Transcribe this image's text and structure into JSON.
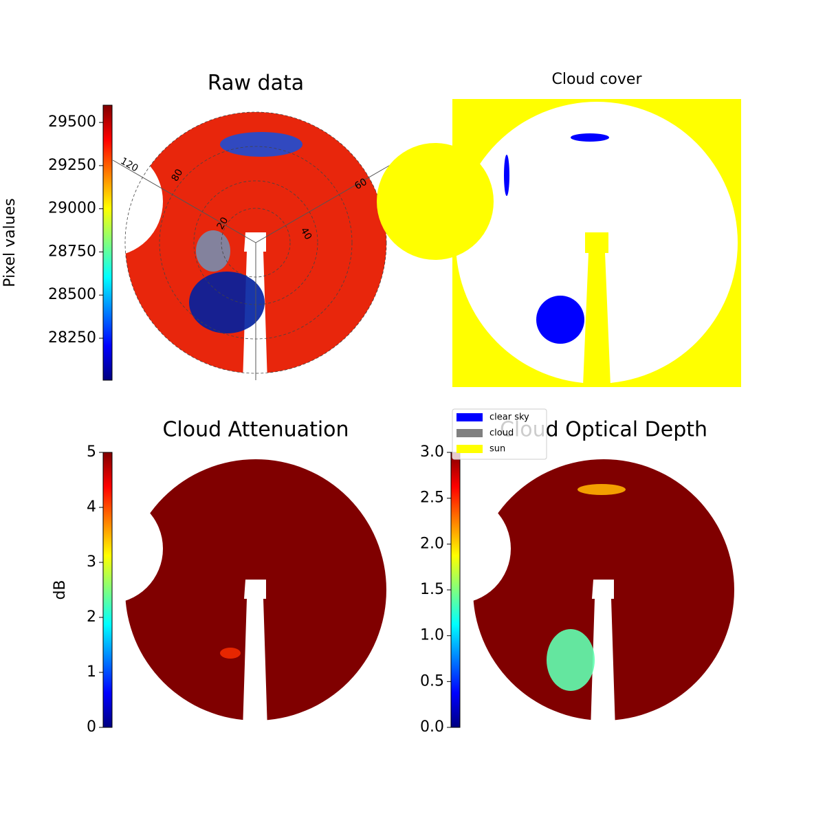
{
  "chart_data": [
    {
      "type": "heatmap",
      "title": "Raw data",
      "ylabel": "Pixel values",
      "cmap": "jet",
      "fill": "#e8260c",
      "ylim": [
        28007,
        29600
      ],
      "yticks": [
        28250,
        28500,
        28750,
        29000,
        29250,
        29500
      ],
      "polar_labels": [
        "120",
        "80",
        "20",
        "40",
        "60"
      ]
    },
    {
      "type": "categorical",
      "title": "Cloud cover",
      "background": "#ffff00",
      "series": [
        {
          "name": "clear sky",
          "color": "#0000ff"
        },
        {
          "name": "cloud",
          "color": "#808080"
        },
        {
          "name": "sun",
          "color": "#ffff00"
        }
      ]
    },
    {
      "type": "heatmap",
      "title": "Cloud Attenuation",
      "ylabel": "dB",
      "cmap": "jet",
      "fill": "#800000",
      "ylim": [
        0,
        5
      ],
      "yticks": [
        0,
        1,
        2,
        3,
        4,
        5
      ]
    },
    {
      "type": "heatmap",
      "title": "Cloud Optical Depth",
      "cmap": "jet",
      "fill": "#800000",
      "ylim": [
        0,
        3
      ],
      "yticks": [
        {
          "value": 0,
          "label": "0.0"
        },
        0.5,
        {
          "value": 1,
          "label": "1.0"
        },
        1.5,
        {
          "value": 2,
          "label": "2.0"
        },
        2.5,
        {
          "value": 3,
          "label": "3.0"
        }
      ]
    }
  ]
}
